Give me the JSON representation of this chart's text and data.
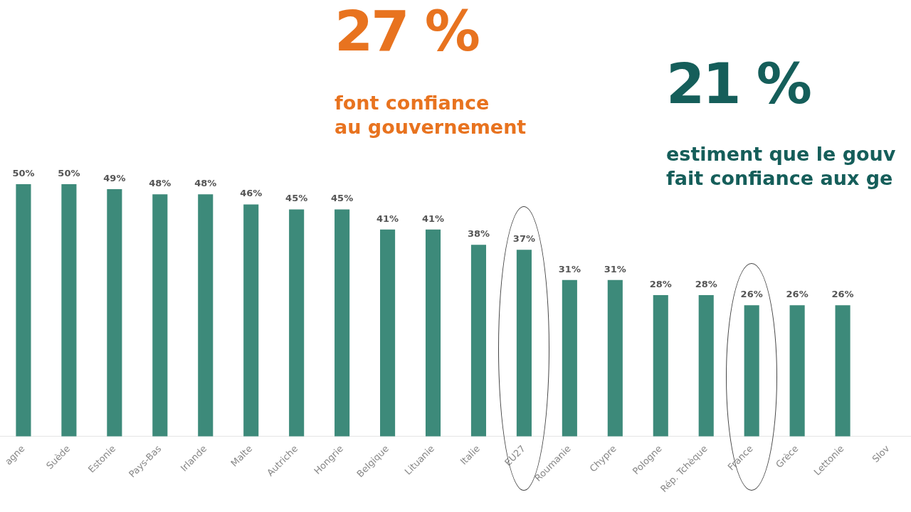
{
  "chart_data": {
    "type": "bar",
    "annotations": [
      "27 %",
      "font confiance\nau gouvernement",
      "21 %",
      "estiment que le gouv\nfait confiance aux ge"
    ],
    "categories": [
      "agne",
      "Suède",
      "Estonie",
      "Pays-Bas",
      "Irlande",
      "Malte",
      "Autriche",
      "Hongrie",
      "Belgique",
      "Lituanie",
      "Italie",
      "EU27",
      "Roumanie",
      "Chypre",
      "Pologne",
      "Rép. Tchèque",
      "France",
      "Grèce",
      "Lettonie",
      "Slov"
    ],
    "values": [
      50,
      50,
      49,
      48,
      48,
      46,
      45,
      45,
      41,
      41,
      38,
      37,
      31,
      31,
      28,
      28,
      26,
      26,
      26,
      null
    ],
    "value_labels": [
      "50%",
      "50%",
      "49%",
      "48%",
      "48%",
      "46%",
      "45%",
      "45%",
      "41%",
      "41%",
      "38%",
      "37%",
      "31%",
      "31%",
      "28%",
      "28%",
      "26%",
      "26%",
      "26%",
      null
    ],
    "color": "#3d8a7a",
    "tick_labels": "x",
    "grid": false,
    "legend": false
  }
}
